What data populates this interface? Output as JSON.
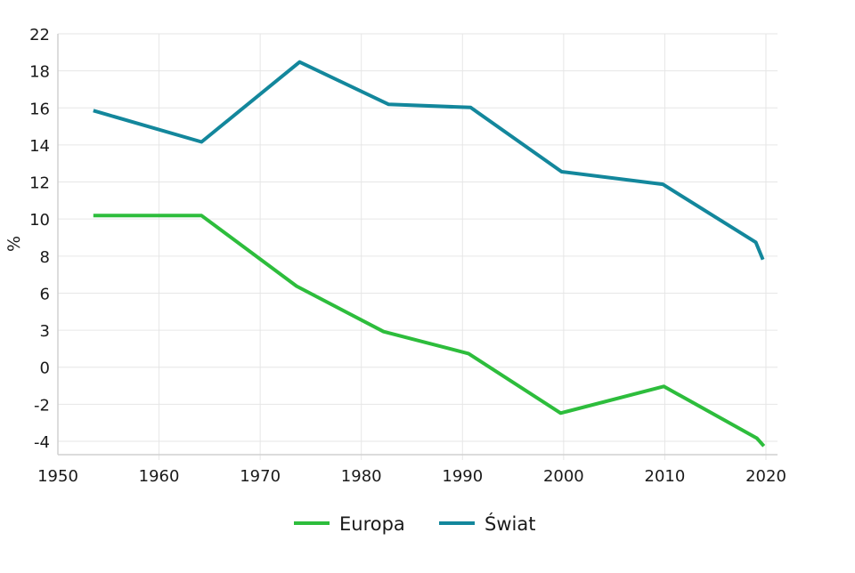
{
  "chart_data": {
    "type": "line",
    "title": "",
    "xlabel": "",
    "ylabel": "%",
    "xlim": [
      1950,
      2020
    ],
    "ylim": [
      -4,
      22
    ],
    "grid": true,
    "legend_position": "bottom",
    "x_ticks": [
      "1950",
      "1960",
      "1970",
      "1980",
      "1990",
      "2000",
      "2010",
      "2020"
    ],
    "y_ticks": [
      "-4",
      "-2",
      "0",
      "3",
      "6",
      "8",
      "10",
      "12",
      "14",
      "16",
      "18",
      "22"
    ],
    "series": [
      {
        "name": "Europa",
        "color": "#2dbd3c",
        "x": [
          1953.5,
          1964.2,
          1973.6,
          1982.2,
          1990.6,
          1999.7,
          2009.9,
          2019.1,
          2019.8
        ],
        "y": [
          10.4,
          10.4,
          5.9,
          3.0,
          1.6,
          -2.2,
          -0.5,
          -3.8,
          -4.3
        ]
      },
      {
        "name": "Świat",
        "color": "#13879c",
        "x": [
          1953.5,
          1964.2,
          1973.9,
          1982.7,
          1990.8,
          1999.8,
          2009.8,
          2019.0,
          2019.7
        ],
        "y": [
          17.1,
          15.1,
          20.2,
          17.5,
          17.3,
          13.2,
          12.4,
          8.7,
          7.6
        ]
      }
    ]
  }
}
